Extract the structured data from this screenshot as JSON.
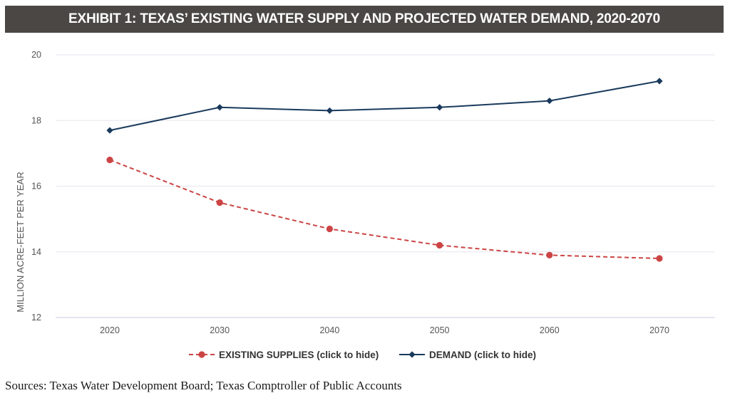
{
  "chart_data": {
    "type": "line",
    "title": "EXHIBIT 1: TEXAS’ EXISTING WATER SUPPLY AND PROJECTED WATER DEMAND, 2020-2070",
    "xlabel": "",
    "ylabel": "MILLION ACRE-FEET PER YEAR",
    "ylim": [
      12,
      20
    ],
    "yticks": [
      "12",
      "14",
      "16",
      "18",
      "20"
    ],
    "categories": [
      "2020",
      "2030",
      "2040",
      "2050",
      "2060",
      "2070"
    ],
    "series": [
      {
        "name": "EXISTING SUPPLIES (click to hide)",
        "color": "#cc4444",
        "style": "dashed",
        "marker": "circle",
        "values": [
          16.8,
          15.5,
          14.7,
          14.2,
          13.9,
          13.8
        ]
      },
      {
        "name": "DEMAND (click to hide)",
        "color": "#1a3a5c",
        "style": "solid",
        "marker": "diamond",
        "values": [
          17.7,
          18.4,
          18.3,
          18.4,
          18.6,
          19.2
        ]
      }
    ],
    "legend": "bottom-center"
  },
  "source": "Sources: Texas Water Development Board; Texas Comptroller of Public Accounts"
}
